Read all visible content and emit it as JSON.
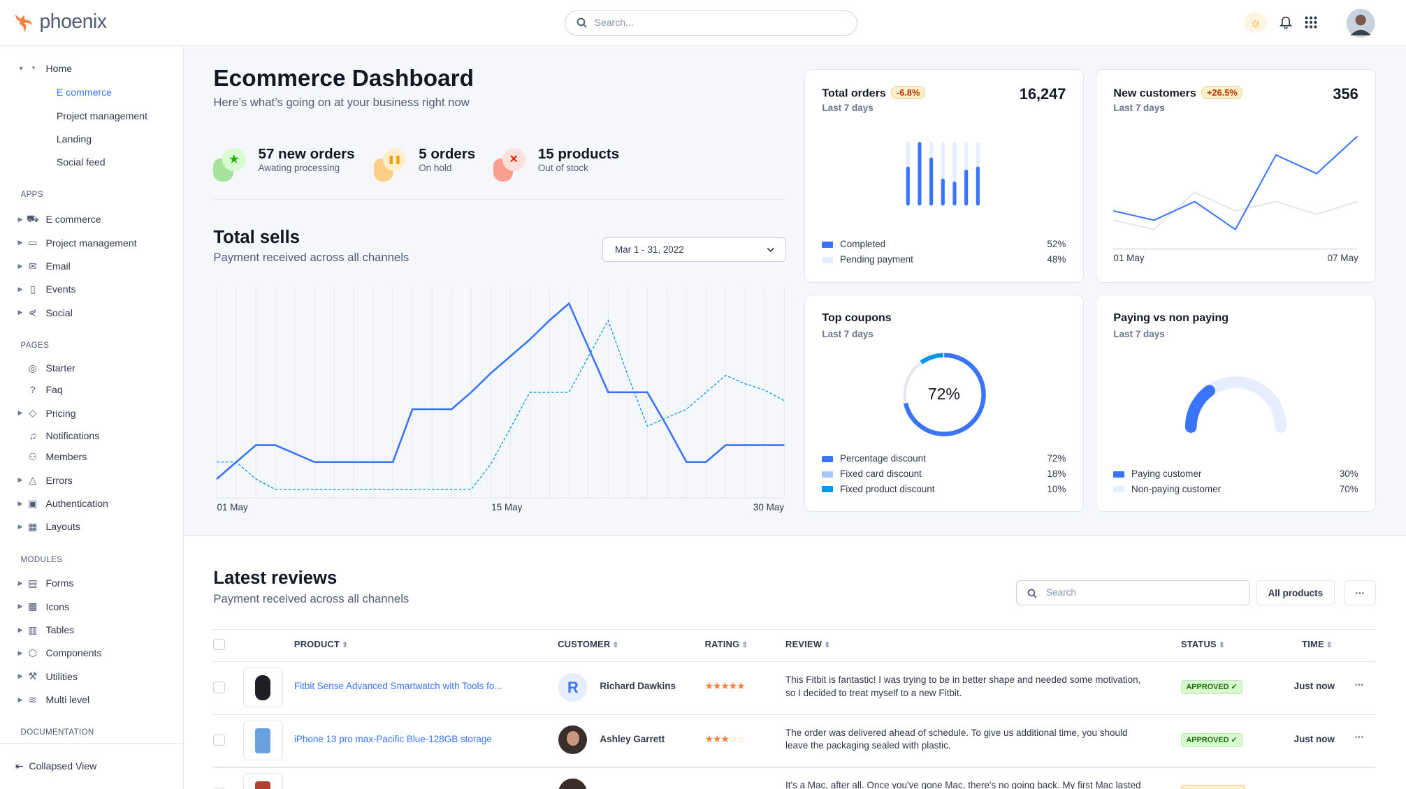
{
  "app": {
    "name": "phoenix"
  },
  "header": {
    "search_placeholder": "Search...",
    "icons": [
      "sun-icon",
      "bell-icon",
      "apps-grid-icon",
      "user-avatar"
    ]
  },
  "sidebar": {
    "items": [
      {
        "label": "Home",
        "type": "parent",
        "expanded": true,
        "icon": "pie-chart-icon"
      },
      {
        "label": "E commerce",
        "type": "sub",
        "active": true
      },
      {
        "label": "Project management",
        "type": "sub"
      },
      {
        "label": "Landing",
        "type": "sub"
      },
      {
        "label": "Social feed",
        "type": "sub"
      },
      {
        "label": "APPS",
        "type": "heading"
      },
      {
        "label": "E commerce",
        "type": "parent",
        "icon": "cart-icon"
      },
      {
        "label": "Project management",
        "type": "parent",
        "icon": "clipboard-icon"
      },
      {
        "label": "Email",
        "type": "parent",
        "icon": "mail-icon"
      },
      {
        "label": "Events",
        "type": "parent",
        "icon": "bookmark-icon"
      },
      {
        "label": "Social",
        "type": "parent",
        "icon": "share-icon"
      },
      {
        "label": "PAGES",
        "type": "heading"
      },
      {
        "label": "Starter",
        "type": "leaf",
        "icon": "compass-icon"
      },
      {
        "label": "Faq",
        "type": "leaf",
        "icon": "help-circle-icon"
      },
      {
        "label": "Pricing",
        "type": "parent",
        "icon": "tag-icon"
      },
      {
        "label": "Notifications",
        "type": "leaf",
        "icon": "bell-icon"
      },
      {
        "label": "Members",
        "type": "leaf",
        "icon": "users-icon"
      },
      {
        "label": "Errors",
        "type": "parent",
        "icon": "alert-triangle-icon"
      },
      {
        "label": "Authentication",
        "type": "parent",
        "icon": "lock-icon"
      },
      {
        "label": "Layouts",
        "type": "parent",
        "icon": "layout-icon"
      },
      {
        "label": "MODULES",
        "type": "heading"
      },
      {
        "label": "Forms",
        "type": "parent",
        "icon": "file-text-icon"
      },
      {
        "label": "Icons",
        "type": "parent",
        "icon": "grid-icon"
      },
      {
        "label": "Tables",
        "type": "parent",
        "icon": "columns-icon"
      },
      {
        "label": "Components",
        "type": "parent",
        "icon": "package-icon"
      },
      {
        "label": "Utilities",
        "type": "parent",
        "icon": "tool-icon"
      },
      {
        "label": "Multi level",
        "type": "parent",
        "icon": "layers-icon"
      },
      {
        "label": "DOCUMENTATION",
        "type": "heading"
      }
    ],
    "collapse_label": "Collapsed View"
  },
  "page": {
    "title": "Ecommerce Dashboard",
    "subtitle": "Here’s what’s going on at your business right now"
  },
  "stats": [
    {
      "value": "57 new orders",
      "label": "Awating processing",
      "color": "#25b003",
      "icon": "star-icon"
    },
    {
      "value": "5 orders",
      "label": "On hold",
      "color": "#f39c12",
      "icon": "pause-icon"
    },
    {
      "value": "15 products",
      "label": "Out of stock",
      "color": "#ec1f00",
      "icon": "x-icon"
    }
  ],
  "total_sells": {
    "title": "Total sells",
    "subtitle": "Payment received across all channels",
    "date_range": "Mar 1 - 31, 2022"
  },
  "chart_data": [
    {
      "type": "line",
      "x": [
        "01 May",
        "02 May",
        "03 May",
        "04 May",
        "05 May",
        "06 May",
        "07 May",
        "08 May",
        "09 May",
        "10 May",
        "11 May",
        "12 May",
        "13 May",
        "14 May",
        "15 May",
        "16 May",
        "17 May",
        "18 May",
        "19 May",
        "20 May",
        "21 May",
        "22 May",
        "23 May",
        "24 May",
        "25 May",
        "26 May",
        "27 May",
        "28 May",
        "29 May",
        "30 May"
      ],
      "x_tick_labels": [
        "01 May",
        "15 May",
        "30 May"
      ],
      "series": [
        {
          "style": "solid",
          "color": "#3874ff",
          "values": [
            9,
            17,
            25,
            25,
            21,
            17,
            17,
            17,
            17,
            17,
            42,
            42,
            42,
            50,
            59,
            67,
            75,
            84,
            92,
            71,
            50,
            50,
            50,
            34,
            17,
            17,
            25,
            25,
            25,
            25
          ]
        },
        {
          "style": "dashed",
          "color": "#0097eb",
          "values": [
            17,
            17,
            9,
            4,
            4,
            4,
            4,
            4,
            4,
            4,
            4,
            4,
            4,
            4,
            16,
            33,
            50,
            50,
            50,
            67,
            84,
            58,
            34,
            38,
            42,
            50,
            58,
            54,
            51,
            46
          ]
        }
      ],
      "ylim": [
        0,
        100
      ],
      "grid": "vertical"
    },
    {
      "type": "bar",
      "title": "Total orders",
      "subtitle": "Last 7 days",
      "total": "16,247",
      "change": "-6.8%",
      "categories": [
        "1",
        "2",
        "3",
        "4",
        "5",
        "6",
        "7"
      ],
      "series": [
        {
          "name": "Completed",
          "color": "#3874ff",
          "values": [
            59,
            100,
            74,
            39,
            34,
            54,
            59
          ]
        },
        {
          "name": "Pending payment",
          "color": "#e5edff",
          "values": [
            41,
            0,
            26,
            61,
            66,
            46,
            41
          ]
        }
      ],
      "legend": [
        {
          "label": "Completed",
          "value": "52%",
          "color": "#3874ff"
        },
        {
          "label": "Pending payment",
          "value": "48%",
          "color": "#e5edff"
        }
      ],
      "ylim": [
        0,
        100
      ]
    },
    {
      "type": "line",
      "title": "New customers",
      "subtitle": "Last 7 days",
      "total": "356",
      "change": "+26.5%",
      "x_tick_labels": [
        "01 May",
        "07 May"
      ],
      "series": [
        {
          "color": "#3874ff",
          "values": [
            32,
            24,
            40,
            16,
            80,
            64,
            96
          ]
        },
        {
          "color": "#e3e6ed",
          "values": [
            24,
            16,
            48,
            32,
            40,
            29,
            40
          ]
        }
      ],
      "ylim": [
        0,
        100
      ]
    },
    {
      "type": "pie",
      "title": "Top coupons",
      "subtitle": "Last 7 days",
      "center_label": "72%",
      "slices": [
        {
          "label": "Percentage discount",
          "value": 72,
          "display": "72%",
          "color": "#3874ff"
        },
        {
          "label": "Fixed card discount",
          "value": 18,
          "display": "18%",
          "color": "#adc5ff"
        },
        {
          "label": "Fixed product discount",
          "value": 10,
          "display": "10%",
          "color": "#0097eb"
        }
      ]
    },
    {
      "type": "pie",
      "title": "Paying vs non paying",
      "subtitle": "Last 7 days",
      "slices": [
        {
          "label": "Paying customer",
          "value": 30,
          "display": "30%",
          "color": "#3874ff"
        },
        {
          "label": "Non-paying customer",
          "value": 70,
          "display": "70%",
          "color": "#e5edff"
        }
      ]
    }
  ],
  "reviews": {
    "title": "Latest reviews",
    "subtitle": "Payment received across all channels",
    "search_placeholder": "Search",
    "filter_label": "All products",
    "more_label": "···",
    "columns": [
      "PRODUCT",
      "CUSTOMER",
      "RATING",
      "REVIEW",
      "STATUS",
      "TIME"
    ],
    "rows": [
      {
        "product": "Fitbit Sense Advanced Smartwatch with Tools fo...",
        "customer": "Richard Dawkins",
        "initial": "R",
        "rating": 5,
        "review": "This Fitbit is fantastic! I was trying to be in better shape and needed some motivation, so I decided to treat myself to a new Fitbit.",
        "status": "APPROVED ✓",
        "status_type": "approved",
        "time": "Just now",
        "more": "···"
      },
      {
        "product": "iPhone 13 pro max-Pacific Blue-128GB storage",
        "customer": "Ashley Garrett",
        "rating": 3,
        "review": "The order was delivered ahead of schedule. To give us additional time, you should leave the packaging sealed with plastic.",
        "status": "APPROVED ✓",
        "status_type": "approved",
        "time": "Just now",
        "more": "···"
      },
      {
        "product": "",
        "customer": "",
        "rating": 0,
        "review": "It's a Mac, after all. Once you've gone Mac, there's no going back. My first Mac lasted",
        "status": "",
        "status_type": "pending",
        "time": "",
        "more": ""
      }
    ]
  }
}
